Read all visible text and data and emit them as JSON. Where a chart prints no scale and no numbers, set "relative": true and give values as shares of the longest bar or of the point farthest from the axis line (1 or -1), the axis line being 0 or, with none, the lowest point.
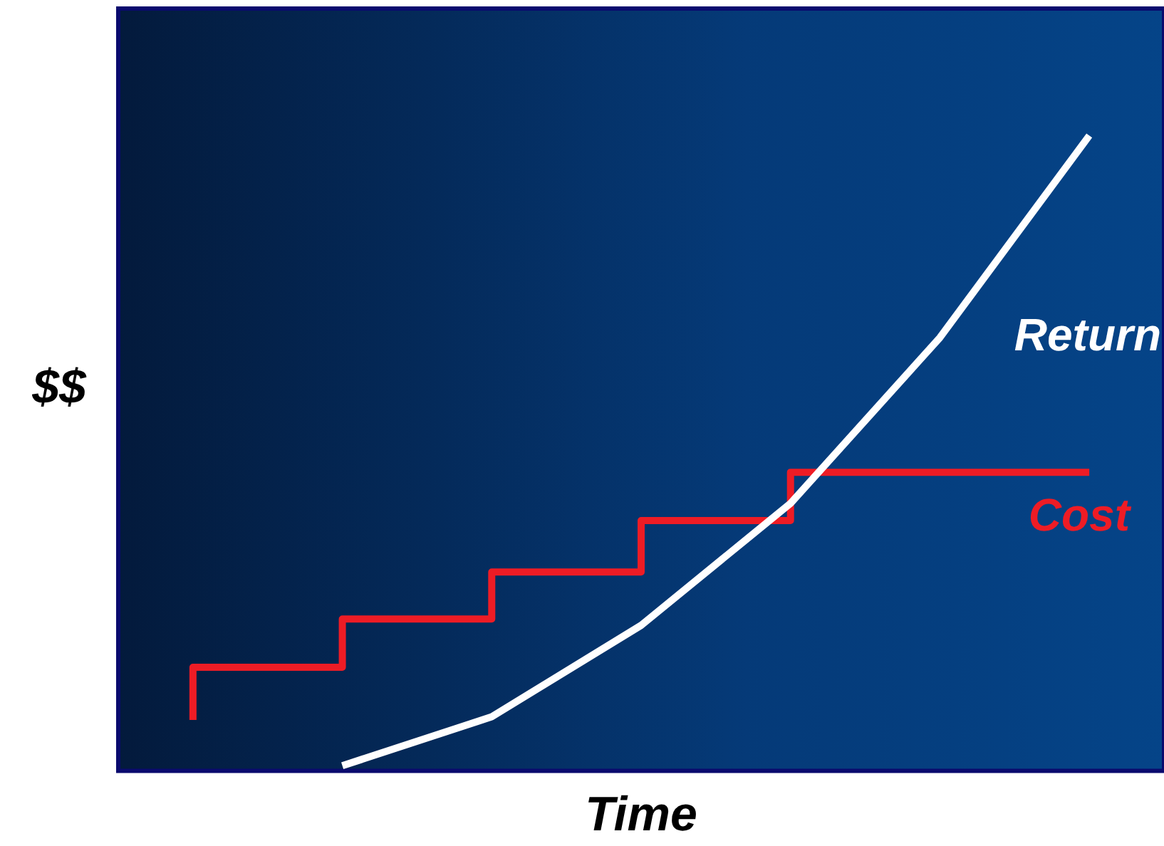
{
  "chart_data": {
    "type": "line",
    "relative": true,
    "xlabel": "Time",
    "ylabel": "$$",
    "categories": [
      null,
      null,
      null,
      null,
      null,
      null,
      null
    ],
    "series": [
      {
        "name": "Return",
        "color": "#ffffff",
        "values": [
          null,
          0.008,
          0.085,
          0.229,
          0.421,
          0.682,
          1
        ]
      },
      {
        "name": "Cost",
        "type": "step",
        "color": "#ee1c25",
        "values": [
          0.08,
          0.163,
          0.239,
          0.313,
          0.394,
          0.47,
          0.47
        ]
      }
    ],
    "grid": false,
    "legend": false,
    "marker": "none"
  }
}
